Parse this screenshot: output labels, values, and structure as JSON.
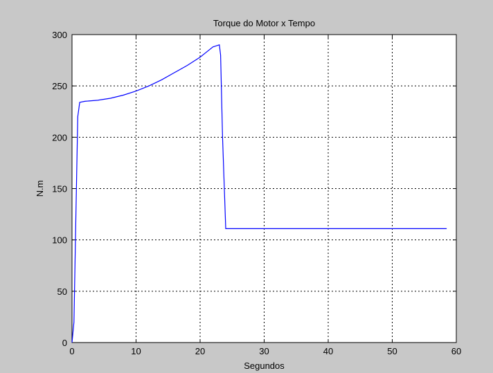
{
  "chart_data": {
    "type": "line",
    "title": "Torque do Motor x Tempo",
    "xlabel": "Segundos",
    "ylabel": "N.m",
    "xlim": [
      0,
      60
    ],
    "ylim": [
      0,
      300
    ],
    "xticks": [
      0,
      10,
      20,
      30,
      40,
      50,
      60
    ],
    "yticks": [
      0,
      50,
      100,
      150,
      200,
      250,
      300
    ],
    "grid": true,
    "colors": {
      "figure_bg": "#c8c8c8",
      "axes_bg": "#ffffff",
      "line": "#0000ff"
    },
    "series": [
      {
        "x": [
          0,
          0.3,
          0.6,
          0.9,
          1.2,
          2,
          4,
          6,
          8,
          10,
          12,
          14,
          16,
          18,
          20,
          21,
          22,
          23,
          23.2,
          23.5,
          24,
          30,
          40,
          50,
          58.5
        ],
        "y": [
          0,
          20,
          120,
          220,
          234,
          235,
          236,
          238,
          241,
          245,
          250,
          256,
          263,
          270,
          278,
          283,
          288,
          290,
          280,
          200,
          111,
          111,
          111,
          111,
          111
        ]
      }
    ]
  }
}
